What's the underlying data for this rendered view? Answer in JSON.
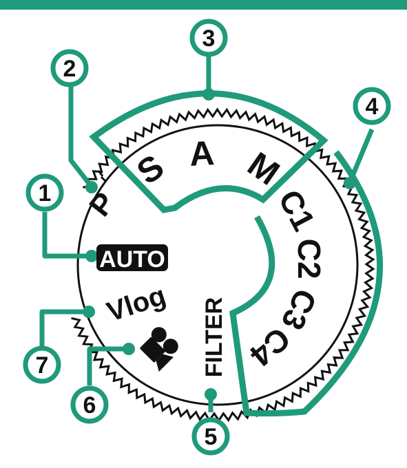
{
  "colors": {
    "accent": "#1f9a7a",
    "ink": "#111111",
    "background": "#ffffff"
  },
  "dial": {
    "modes": {
      "p": "P",
      "s": "S",
      "a": "A",
      "m": "M",
      "c1": "C1",
      "c2": "C2",
      "c3": "C3",
      "c4": "C4",
      "auto": "AUTO",
      "vlog": "Vlog",
      "filter": "FILTER",
      "movie_icon": "movie-camera-icon"
    }
  },
  "callouts": [
    "1",
    "2",
    "3",
    "4",
    "5",
    "6",
    "7"
  ]
}
